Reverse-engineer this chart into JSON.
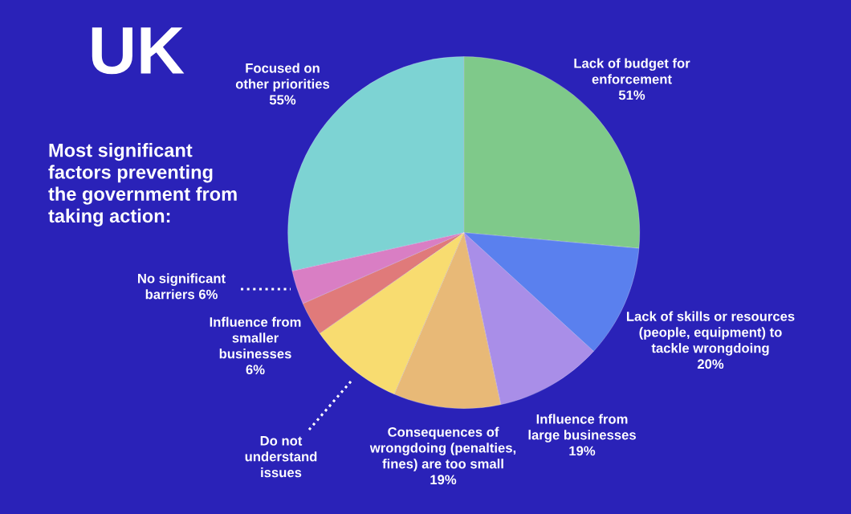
{
  "chart_data": {
    "type": "pie",
    "title": "UK",
    "subtitle": "Most significant\nfactors preventing\nthe government from\ntaking action:",
    "categories": [
      "Lack of budget for\nenforcement",
      "Lack of skills or resources\n(people, equipment) to\ntackle wrongdoing",
      "Influence from\nlarge businesses",
      "Consequences of\nwrongdoing (penalties,\nfines) are too small",
      "Do not\nunderstand\nissues",
      "Influence from\nsmaller\nbusinesses",
      "No significant\nbarriers",
      "Focused on\nother priorities"
    ],
    "values": [
      51,
      20,
      19,
      19,
      17,
      6,
      6,
      55
    ],
    "value_labels": [
      "51%",
      "20%",
      "19%",
      "19%",
      null,
      "6%",
      "6%",
      "55%"
    ],
    "colors": [
      "#7fc98a",
      "#5a80ee",
      "#a98ee8",
      "#e8b977",
      "#f8dc70",
      "#e07a7a",
      "#d97ec4",
      "#7dd3d3"
    ]
  }
}
